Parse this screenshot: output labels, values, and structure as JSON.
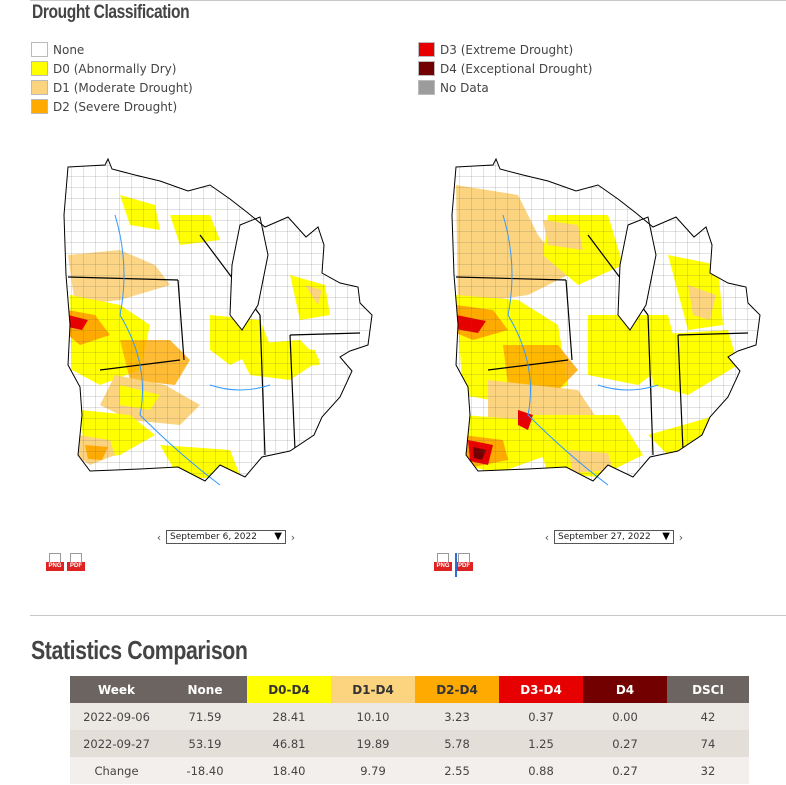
{
  "drought": {
    "title": "Drought Classification",
    "legend_left": [
      {
        "label": "None",
        "color": "#ffffff"
      },
      {
        "label": "D0 (Abnormally Dry)",
        "color": "#ffff00"
      },
      {
        "label": "D1 (Moderate Drought)",
        "color": "#fcd37f"
      },
      {
        "label": "D2 (Severe Drought)",
        "color": "#ffaa00"
      }
    ],
    "legend_right": [
      {
        "label": "D3 (Extreme Drought)",
        "color": "#e60000"
      },
      {
        "label": "D4 (Exceptional Drought)",
        "color": "#730000"
      },
      {
        "label": "No Data",
        "color": "#9c9c9c"
      }
    ]
  },
  "maps": [
    {
      "date": "September 6, 2022",
      "prev": "‹",
      "next": "›"
    },
    {
      "date": "September 27, 2022",
      "prev": "‹",
      "next": "›"
    }
  ],
  "downloads": {
    "png": "PNG",
    "pdf": "PDF"
  },
  "stats": {
    "title": "Statistics Comparison",
    "headers": [
      "Week",
      "None",
      "D0-D4",
      "D1-D4",
      "D2-D4",
      "D3-D4",
      "D4",
      "DSCI"
    ],
    "header_colors": [
      "#6b6460",
      "#6b6460",
      "#ffff00",
      "#fcd37f",
      "#ffaa00",
      "#e60000",
      "#730000",
      "#6b6460"
    ],
    "header_text_colors": [
      "#ffffff",
      "#ffffff",
      "#333333",
      "#333333",
      "#333333",
      "#ffffff",
      "#ffffff",
      "#ffffff"
    ],
    "rows": [
      [
        "2022-09-06",
        "71.59",
        "28.41",
        "10.10",
        "3.23",
        "0.37",
        "0.00",
        "42"
      ],
      [
        "2022-09-27",
        "53.19",
        "46.81",
        "19.89",
        "5.78",
        "1.25",
        "0.27",
        "74"
      ],
      [
        "Change",
        "-18.40",
        "18.40",
        "9.79",
        "2.55",
        "0.88",
        "0.27",
        "32"
      ]
    ]
  }
}
